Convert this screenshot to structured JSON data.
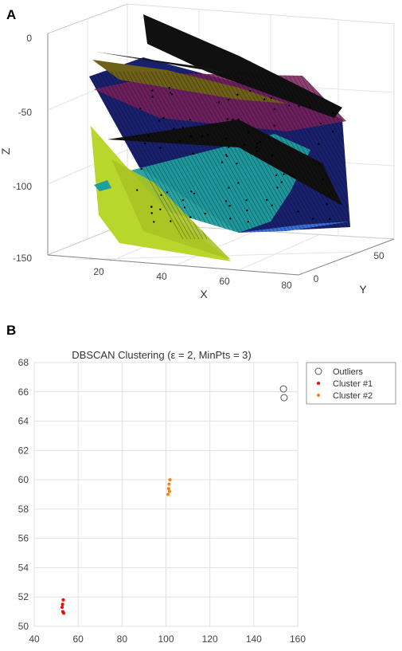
{
  "panels": {
    "a_label": "A",
    "b_label": "B"
  },
  "chart_data": [
    {
      "type": "scatter",
      "title": "",
      "xlabel": "X",
      "ylabel": "Y",
      "zlabel": "Z",
      "x_ticks": [
        "20",
        "40",
        "60",
        "80"
      ],
      "y_ticks": [
        "0",
        "50"
      ],
      "z_ticks": [
        "0",
        "-50",
        "-100",
        "-150"
      ],
      "xlim": [
        0,
        80
      ],
      "ylim": [
        0,
        70
      ],
      "zlim": [
        -150,
        0
      ],
      "grid": true,
      "surfaces": [
        {
          "name": "",
          "color": "#0d1566"
        },
        {
          "name": "",
          "color": "#1f9e9e"
        },
        {
          "name": "",
          "color": "#b8d62b"
        },
        {
          "name": "",
          "color": "#7a1e5a"
        },
        {
          "name": "",
          "color": "#6e6018"
        },
        {
          "name": "",
          "color": "#101010"
        },
        {
          "name": "",
          "color": "#3a6fd8"
        }
      ]
    },
    {
      "type": "scatter",
      "title": "DBSCAN Clustering (ε = 2, MinPts = 3)",
      "xlabel": "",
      "ylabel": "",
      "xlim": [
        40,
        160
      ],
      "ylim": [
        50,
        68
      ],
      "x_ticks": [
        40,
        60,
        80,
        100,
        120,
        140,
        160
      ],
      "y_ticks": [
        50,
        52,
        54,
        56,
        58,
        60,
        62,
        64,
        66,
        68
      ],
      "grid": true,
      "legend_position": "outside-top-right",
      "series": [
        {
          "name": "Outliers",
          "color": "#555555",
          "marker": "open-circle",
          "points": [
            [
              153.5,
              66.2
            ],
            [
              153.8,
              65.6
            ]
          ]
        },
        {
          "name": "Cluster #1",
          "color": "#ff0000",
          "marker": "dot",
          "points": [
            [
              53.2,
              51.8
            ],
            [
              52.9,
              51.5
            ],
            [
              52.7,
              51.3
            ],
            [
              53.0,
              51.0
            ],
            [
              53.4,
              50.9
            ]
          ]
        },
        {
          "name": "Cluster #2",
          "color": "#ff7f0e",
          "marker": "dot",
          "points": [
            [
              101.8,
              60.0
            ],
            [
              101.4,
              59.7
            ],
            [
              101.2,
              59.4
            ],
            [
              101.6,
              59.2
            ],
            [
              100.9,
              59.0
            ]
          ]
        }
      ]
    }
  ]
}
